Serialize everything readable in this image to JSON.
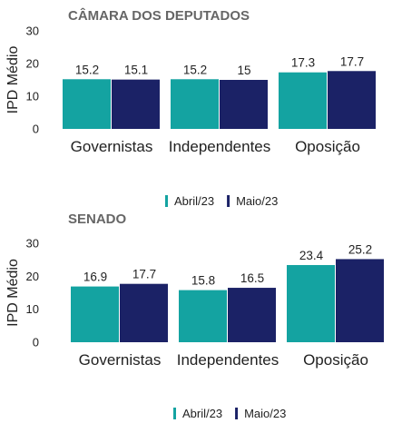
{
  "chart_data": [
    {
      "type": "bar",
      "title": "CÂMARA DOS DEPUTADOS",
      "ylabel": "IPD Médio",
      "xlabel": "",
      "ylim": [
        0,
        30
      ],
      "yticks": [
        0,
        10,
        20,
        30
      ],
      "categories": [
        "Governistas",
        "Independentes",
        "Oposição"
      ],
      "series": [
        {
          "name": "Abril/23",
          "color": "#14A3A1",
          "values": [
            15.2,
            15.2,
            17.3
          ],
          "labels": [
            "15.2",
            "15.2",
            "17.3"
          ]
        },
        {
          "name": "Maio/23",
          "color": "#1B2266",
          "values": [
            15.1,
            15,
            17.7
          ],
          "labels": [
            "15.1",
            "15",
            "17.7"
          ]
        }
      ],
      "legend": "bottom-center",
      "grid": false
    },
    {
      "type": "bar",
      "title": "SENADO",
      "ylabel": "IPD Médio",
      "xlabel": "",
      "ylim": [
        0,
        30
      ],
      "yticks": [
        0,
        10,
        20,
        30
      ],
      "categories": [
        "Governistas",
        "Independentes",
        "Oposição"
      ],
      "series": [
        {
          "name": "Abril/23",
          "color": "#14A3A1",
          "values": [
            16.9,
            15.8,
            23.4
          ],
          "labels": [
            "16.9",
            "15.8",
            "23.4"
          ]
        },
        {
          "name": "Maio/23",
          "color": "#1B2266",
          "values": [
            17.7,
            16.5,
            25.2
          ],
          "labels": [
            "17.7",
            "16.5",
            "25.2"
          ]
        }
      ],
      "legend": "bottom-center",
      "grid": false
    }
  ]
}
